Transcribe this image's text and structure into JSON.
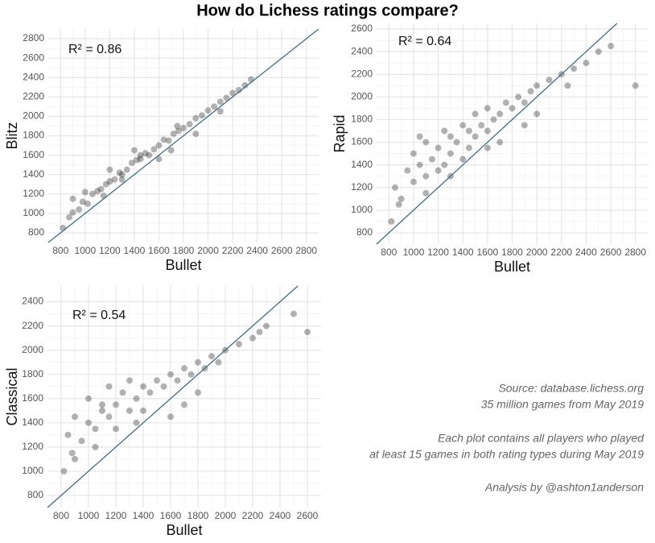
{
  "title": "How do Lichess ratings compare?",
  "chart_data": [
    {
      "type": "scatter",
      "x_label": "Bullet",
      "y_label": "Blitz",
      "annotation": "R² = 0.86",
      "xlim": [
        700,
        2900
      ],
      "ylim": [
        700,
        2900
      ],
      "xticks": [
        800,
        1000,
        1200,
        1400,
        1600,
        1800,
        2000,
        2200,
        2400,
        2600,
        2800
      ],
      "yticks": [
        800,
        1000,
        1200,
        1400,
        1600,
        1800,
        2000,
        2200,
        2400,
        2600,
        2800
      ],
      "grid": true,
      "identity_line": true,
      "line_color": "#3f6f82",
      "color": "#000000",
      "x": [
        820,
        870,
        900,
        950,
        980,
        1020,
        1060,
        1100,
        1130,
        1170,
        1200,
        1240,
        1280,
        1300,
        1340,
        1380,
        1420,
        1450,
        1490,
        1520,
        1560,
        1600,
        1640,
        1680,
        1720,
        1760,
        1800,
        1850,
        1900,
        1950,
        2000,
        2050,
        2100,
        2150,
        2200,
        2250,
        2300,
        2350,
        1000,
        1150,
        1300,
        1450,
        1600,
        1750,
        1900,
        1200,
        1400,
        1700,
        900,
        2100
      ],
      "y": [
        850,
        960,
        1010,
        1040,
        1120,
        1100,
        1200,
        1230,
        1250,
        1300,
        1330,
        1350,
        1420,
        1400,
        1450,
        1520,
        1550,
        1560,
        1620,
        1600,
        1660,
        1700,
        1760,
        1750,
        1820,
        1850,
        1880,
        1920,
        1980,
        2010,
        2060,
        2100,
        2150,
        2190,
        2240,
        2270,
        2320,
        2380,
        1220,
        1180,
        1350,
        1600,
        1560,
        1900,
        1820,
        1450,
        1650,
        1650,
        1150,
        2050
      ]
    },
    {
      "type": "scatter",
      "x_label": "Bullet",
      "y_label": "Rapid",
      "annotation": "R² = 0.64",
      "xlim": [
        700,
        2900
      ],
      "ylim": [
        700,
        2650
      ],
      "xticks": [
        800,
        1000,
        1200,
        1400,
        1600,
        1800,
        2000,
        2200,
        2400,
        2600,
        2800
      ],
      "yticks": [
        800,
        1000,
        1200,
        1400,
        1600,
        1800,
        2000,
        2200,
        2400,
        2600
      ],
      "grid": true,
      "identity_line": true,
      "line_color": "#3f6f82",
      "color": "#000000",
      "x": [
        820,
        850,
        900,
        950,
        1000,
        1000,
        1050,
        1100,
        1100,
        1150,
        1200,
        1200,
        1250,
        1300,
        1300,
        1350,
        1400,
        1400,
        1450,
        1500,
        1500,
        1550,
        1600,
        1600,
        1650,
        1700,
        1750,
        1800,
        1850,
        1900,
        1950,
        2000,
        2100,
        2200,
        2300,
        2400,
        2500,
        2600,
        2800,
        880,
        1100,
        1250,
        1450,
        1700,
        1900,
        1050,
        1300,
        1600,
        2000,
        2250
      ],
      "y": [
        900,
        1200,
        1100,
        1350,
        1250,
        1500,
        1400,
        1300,
        1600,
        1450,
        1550,
        1350,
        1700,
        1500,
        1650,
        1600,
        1750,
        1450,
        1700,
        1650,
        1850,
        1750,
        1700,
        1900,
        1800,
        1850,
        1950,
        1900,
        2000,
        1950,
        2050,
        2100,
        2150,
        2200,
        2250,
        2300,
        2400,
        2450,
        2100,
        1050,
        1150,
        1400,
        1550,
        1600,
        1750,
        1650,
        1300,
        1550,
        1850,
        2100
      ]
    },
    {
      "type": "scatter",
      "x_label": "Bullet",
      "y_label": "Classical",
      "annotation": "R² = 0.54",
      "xlim": [
        700,
        2700
      ],
      "ylim": [
        700,
        2530
      ],
      "xticks": [
        800,
        1000,
        1200,
        1400,
        1600,
        1800,
        2000,
        2200,
        2400,
        2600
      ],
      "yticks": [
        800,
        1000,
        1200,
        1400,
        1600,
        1800,
        2000,
        2200,
        2400
      ],
      "grid": true,
      "identity_line": true,
      "line_color": "#3f6f82",
      "color": "#000000",
      "x": [
        820,
        850,
        880,
        900,
        950,
        1000,
        1000,
        1050,
        1100,
        1150,
        1150,
        1200,
        1250,
        1300,
        1300,
        1350,
        1400,
        1450,
        1500,
        1550,
        1600,
        1650,
        1700,
        1750,
        1800,
        1850,
        1900,
        1950,
        2000,
        2100,
        2200,
        2250,
        2300,
        2500,
        2600,
        900,
        1050,
        1200,
        1400,
        1600,
        1800,
        1100,
        1350,
        1700
      ],
      "y": [
        1000,
        1300,
        1150,
        1450,
        1250,
        1400,
        1600,
        1350,
        1500,
        1700,
        1450,
        1550,
        1650,
        1500,
        1750,
        1600,
        1700,
        1650,
        1750,
        1700,
        1800,
        1750,
        1850,
        1800,
        1900,
        1850,
        1950,
        1900,
        2000,
        2050,
        2100,
        2150,
        2200,
        2300,
        2150,
        1100,
        1200,
        1350,
        1500,
        1450,
        1650,
        1550,
        1400,
        1550
      ]
    }
  ],
  "notes": [
    "Source: database.lichess.org",
    "35 million games from May 2019",
    "Each plot contains all players who played",
    "at least 15 games in both rating types during May 2019",
    "Analysis by @ashton1anderson"
  ]
}
